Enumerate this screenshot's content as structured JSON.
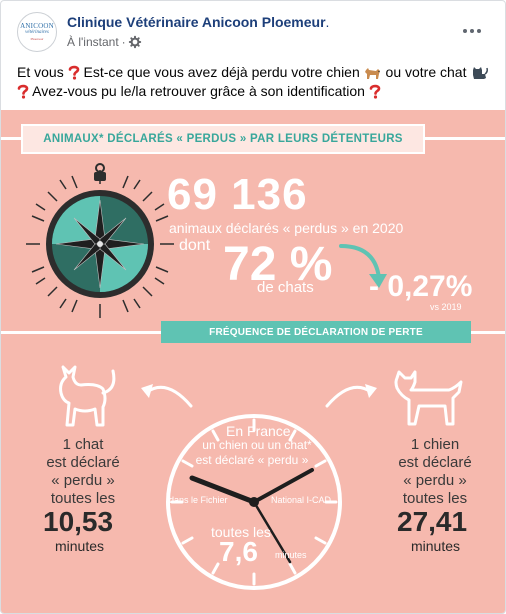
{
  "header": {
    "avatar": {
      "line1": "ANICOON",
      "line2": "vétérinaires",
      "line3": "Ploemeur"
    },
    "page_name": "Clinique Vétérinaire Anicoon Ploemeur",
    "page_name_suffix": ".",
    "timestamp": "À l'instant",
    "separator": "·",
    "privacy_icon": "gear-icon",
    "more_icon": "more-options-icon"
  },
  "message": {
    "part1": "Et vous",
    "part2": "Est-ce que vous avez déjà perdu votre chien",
    "part3": "ou votre chat",
    "part4": "Avez-vous pu le/la retrouver grâce à son identification",
    "emojis": [
      "question-mark-emoji",
      "dog-emoji",
      "cat-emoji",
      "question-mark-emoji",
      "question-mark-emoji"
    ]
  },
  "infographic": {
    "banner_top": "ANIMAUX* DÉCLARÉS « PERDUS » PAR LEURS DÉTENTEURS",
    "big_number": "69 136",
    "big_number_caption": "animaux déclarés « perdus » en 2020",
    "dont": "dont",
    "percent": "72 %",
    "percent_caption": "de chats",
    "variation": "- 0,27%",
    "variation_caption": "vs 2019",
    "banner_mid": "FRÉQUENCE DE DÉCLARATION DE PERTE",
    "cat": {
      "text1": "1 chat",
      "text2": "est déclaré",
      "text3": "« perdu »",
      "text4": "toutes les",
      "number": "10,53",
      "unit": "minutes"
    },
    "dog": {
      "text1": "1 chien",
      "text2": "est déclaré",
      "text3": "« perdu »",
      "text4": "toutes les",
      "number": "27,41",
      "unit": "minutes"
    },
    "clock": {
      "line1": "En France,",
      "line2": "un chien ou un chat*",
      "line3": "est déclaré « perdu »",
      "left_text": "dans le Fichier",
      "right_text": "National I-CAD",
      "bottom1": "toutes les",
      "bottom_number": "7,6",
      "bottom_unit": "minutes"
    },
    "colors": {
      "background": "#f6b9ae",
      "teal": "#38a79b",
      "teal_light": "#5fc3b3",
      "white": "#ffffff",
      "dark": "#2a2a2a"
    }
  }
}
